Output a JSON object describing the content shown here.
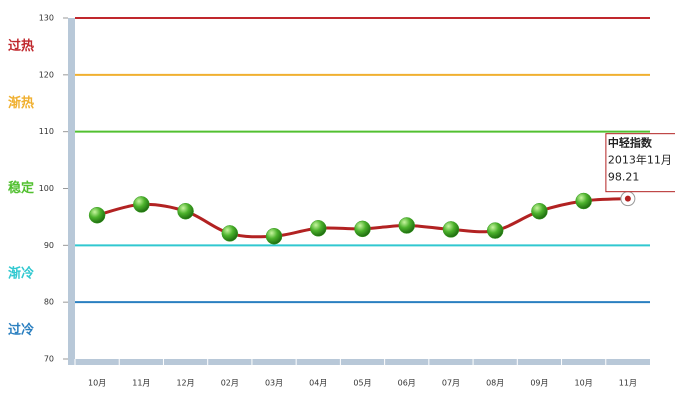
{
  "chart_data": {
    "type": "line",
    "categories": [
      "10月",
      "11月",
      "12月",
      "02月",
      "03月",
      "04月",
      "05月",
      "06月",
      "07月",
      "08月",
      "09月",
      "10月",
      "11月"
    ],
    "series": [
      {
        "name": "中轻指数",
        "color": "#b22222",
        "marker_color": "#3a9d23",
        "values": [
          95.3,
          97.2,
          96.0,
          92.1,
          91.6,
          93.0,
          92.9,
          93.5,
          92.8,
          92.6,
          96.0,
          97.8,
          98.21
        ]
      }
    ],
    "ylim": [
      70,
      130
    ],
    "yticks": [
      70,
      80,
      90,
      100,
      110,
      120,
      130
    ],
    "zones": [
      {
        "label": "过热",
        "from": 120,
        "to": 130,
        "color": "#c0282d"
      },
      {
        "label": "渐热",
        "from": 110,
        "to": 120,
        "color": "#f0b030"
      },
      {
        "label": "稳定",
        "from": 90,
        "to": 110,
        "color": "#52c030"
      },
      {
        "label": "渐冷",
        "from": 80,
        "to": 90,
        "color": "#30c8d0"
      },
      {
        "label": "过冷",
        "from": 70,
        "to": 80,
        "color": "#2a7fc0"
      }
    ],
    "tooltip": {
      "date": "2013年11月"
    }
  }
}
